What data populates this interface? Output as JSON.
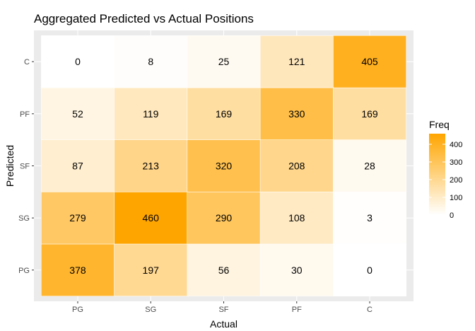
{
  "chart_data": {
    "type": "heatmap",
    "title": "Aggregated Predicted vs Actual Positions",
    "xlabel": "Actual",
    "ylabel": "Predicted",
    "x_categories": [
      "PG",
      "SG",
      "SF",
      "PF",
      "C"
    ],
    "y_categories": [
      "PG",
      "SG",
      "SF",
      "PF",
      "C"
    ],
    "values": [
      [
        378,
        197,
        56,
        30,
        0
      ],
      [
        279,
        460,
        290,
        108,
        3
      ],
      [
        87,
        213,
        320,
        208,
        28
      ],
      [
        52,
        119,
        169,
        330,
        169
      ],
      [
        0,
        8,
        25,
        121,
        405
      ]
    ],
    "values_note": "rows follow y_categories (Predicted), columns follow x_categories (Actual)",
    "legend": {
      "title": "Freq",
      "ticks": [
        0,
        100,
        200,
        300,
        400
      ],
      "range": [
        0,
        460
      ],
      "low_color": "#ffffff",
      "high_color": "#ffa500",
      "placement": "right"
    },
    "panel_background": "#ebebeb",
    "grid": true
  }
}
